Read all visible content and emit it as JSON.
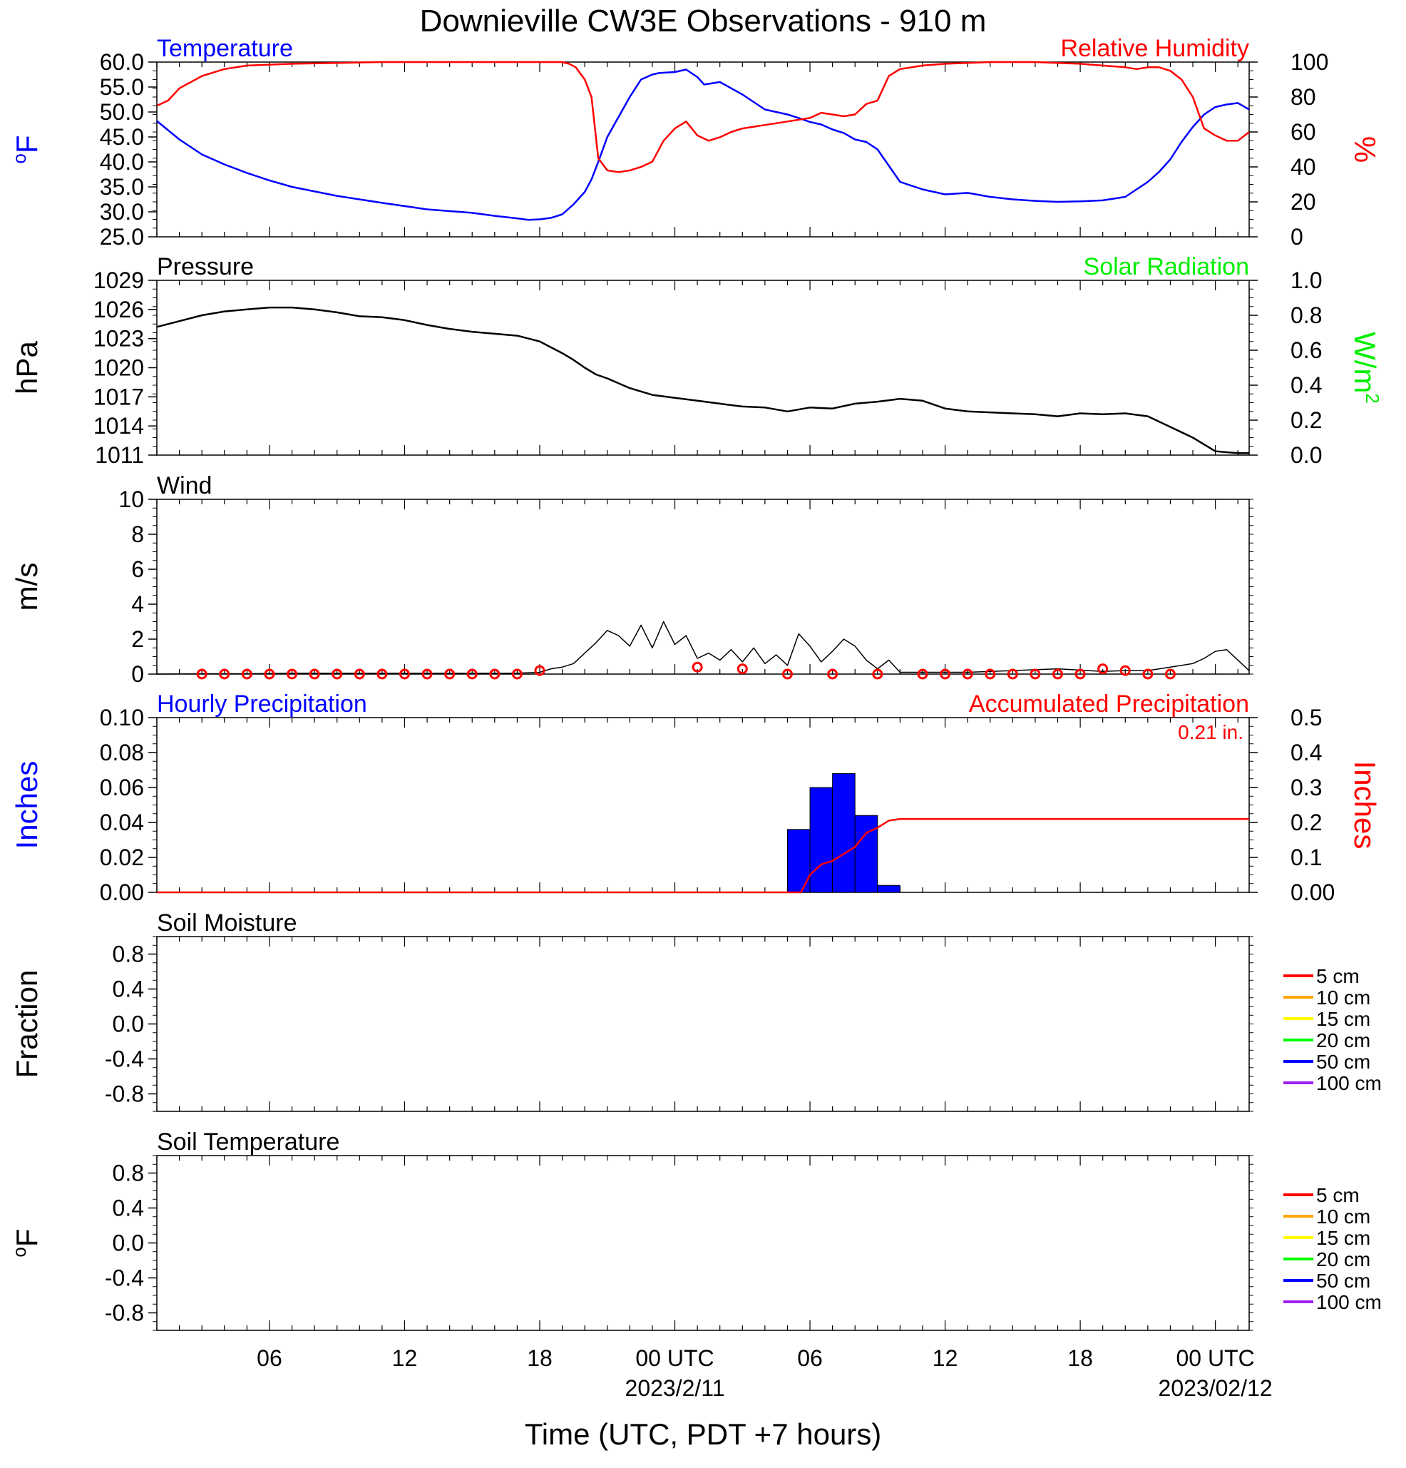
{
  "page": {
    "title": "Downieville CW3E Observations - 910 m",
    "xlabel": "Time (UTC, PDT +7 hours)",
    "x_ticks": [
      "06",
      "12",
      "18",
      "00 UTC",
      "06",
      "12",
      "18",
      "00 UTC"
    ],
    "date_labels": [
      "2023/2/11",
      "2023/02/12"
    ]
  },
  "chart_data": [
    {
      "type": "line",
      "panel": "temperature_humidity",
      "left_title": "Temperature",
      "right_title": "Relative Humidity",
      "ylabel_left": "oF",
      "ylabel_right": "%",
      "ylim_left": [
        25,
        60
      ],
      "ylim_right": [
        0,
        100
      ],
      "yticks_left": [
        "60.0",
        "55.0",
        "50.0",
        "45.0",
        "40.0",
        "35.0",
        "30.0",
        "25.0"
      ],
      "yticks_right": [
        "100",
        "80",
        "60",
        "40",
        "20",
        "0"
      ],
      "x_unit": "hours since 2023-02-10 01 UTC",
      "xlim": [
        0,
        48.5
      ],
      "series": [
        {
          "name": "Temperature",
          "axis": "left",
          "color": "#0000ff",
          "x": [
            0,
            1,
            2,
            3,
            4,
            5,
            6,
            8,
            10,
            12,
            14,
            15,
            16,
            16.5,
            17,
            17.5,
            18,
            18.5,
            19,
            19.3,
            19.6,
            20,
            21,
            21.5,
            22,
            22.3,
            22.6,
            23,
            23.5,
            24,
            24.3,
            25,
            26,
            27,
            28,
            28.5,
            29,
            29.5,
            30,
            30.5,
            31,
            31.5,
            32,
            33,
            34,
            35,
            36,
            37,
            38,
            39,
            40,
            41,
            42,
            43,
            43.5,
            44,
            44.5,
            45,
            45.5,
            46,
            46.5,
            47,
            47.5,
            48,
            48.5
          ],
          "y": [
            48.2,
            44.5,
            41.5,
            39.5,
            37.8,
            36.3,
            35.0,
            33.2,
            31.8,
            30.5,
            29.8,
            29.2,
            28.7,
            28.4,
            28.5,
            28.8,
            29.5,
            31.5,
            34.0,
            36.5,
            40.0,
            45.0,
            53.0,
            56.5,
            57.5,
            57.8,
            57.9,
            58.0,
            58.5,
            57.0,
            55.5,
            56.0,
            53.5,
            50.5,
            49.5,
            48.8,
            48.0,
            47.5,
            46.5,
            45.8,
            44.5,
            44.0,
            42.5,
            36.0,
            34.5,
            33.5,
            33.8,
            33.0,
            32.5,
            32.2,
            32.0,
            32.1,
            32.3,
            33.0,
            34.5,
            36.0,
            38.0,
            40.5,
            44.0,
            47.0,
            49.5,
            51.0,
            51.5,
            51.8,
            50.5
          ]
        },
        {
          "name": "Relative Humidity",
          "axis": "right",
          "color": "#ff0000",
          "x": [
            0,
            0.5,
            1,
            2,
            3,
            4,
            6,
            8,
            10,
            12,
            14,
            16,
            17,
            17.5,
            18,
            18.3,
            18.6,
            19,
            19.3,
            19.6,
            20,
            20.5,
            21,
            21.5,
            22,
            22.5,
            23,
            23.5,
            24,
            24.5,
            25,
            25.5,
            26,
            27,
            28,
            29,
            29.5,
            30,
            30.5,
            31,
            31.5,
            32,
            32.5,
            33,
            34,
            35,
            36,
            37,
            38,
            39,
            40,
            41,
            42,
            43,
            43.5,
            44,
            44.5,
            45,
            45.5,
            46,
            46.5,
            47,
            47.5,
            48,
            48.5
          ],
          "y": [
            75,
            78,
            85,
            92,
            96,
            98,
            99,
            99.5,
            100,
            100,
            100,
            100,
            100,
            100,
            100,
            99,
            97,
            90,
            80,
            45,
            38,
            37,
            38,
            40,
            43,
            55,
            62,
            66,
            58,
            55,
            57,
            60,
            62,
            64,
            66,
            68,
            71,
            70,
            69,
            70,
            76,
            78,
            92,
            96,
            98,
            99,
            99.5,
            100,
            100,
            100,
            99.5,
            99,
            98,
            97,
            96,
            97,
            97,
            95,
            90,
            80,
            62,
            58,
            55,
            55,
            60
          ]
        }
      ]
    },
    {
      "type": "line",
      "panel": "pressure_solar",
      "left_title": "Pressure",
      "right_title": "Solar Radiation",
      "ylabel_left": "hPa",
      "ylabel_right": "W/m2",
      "ylim_left": [
        1011,
        1029
      ],
      "ylim_right": [
        0,
        1
      ],
      "yticks_left": [
        "1029",
        "1026",
        "1023",
        "1020",
        "1017",
        "1014",
        "1011"
      ],
      "yticks_right": [
        "1.0",
        "0.8",
        "0.6",
        "0.4",
        "0.2",
        "0.0"
      ],
      "x_unit": "hours since 2023-02-10 01 UTC",
      "xlim": [
        0,
        48.5
      ],
      "series": [
        {
          "name": "Pressure",
          "axis": "left",
          "color": "#000000",
          "x": [
            0,
            1,
            2,
            3,
            4,
            5,
            6,
            7,
            8,
            9,
            10,
            11,
            12,
            13,
            14,
            15,
            16,
            17,
            18,
            18.5,
            19,
            19.5,
            20,
            21,
            22,
            23,
            24,
            25,
            26,
            27,
            28,
            29,
            30,
            31,
            32,
            33,
            34,
            35,
            36,
            37,
            38,
            39,
            40,
            41,
            42,
            43,
            44,
            45,
            46,
            47,
            48,
            48.5
          ],
          "y": [
            1024.2,
            1024.8,
            1025.4,
            1025.8,
            1026.0,
            1026.2,
            1026.2,
            1026.0,
            1025.7,
            1025.3,
            1025.2,
            1024.9,
            1024.4,
            1024.0,
            1023.7,
            1023.5,
            1023.3,
            1022.7,
            1021.5,
            1020.8,
            1020.0,
            1019.3,
            1018.9,
            1017.9,
            1017.2,
            1016.9,
            1016.6,
            1016.3,
            1016.0,
            1015.9,
            1015.5,
            1015.9,
            1015.8,
            1016.3,
            1016.5,
            1016.8,
            1016.6,
            1015.8,
            1015.5,
            1015.4,
            1015.3,
            1015.2,
            1015.0,
            1015.3,
            1015.2,
            1015.3,
            1015.0,
            1013.9,
            1012.8,
            1011.4,
            1011.2,
            1011.2
          ]
        }
      ]
    },
    {
      "type": "line",
      "panel": "wind",
      "left_title": "Wind",
      "ylabel_left": "m/s",
      "ylim_left": [
        0,
        10
      ],
      "yticks_left": [
        "10",
        "8",
        "6",
        "4",
        "2",
        "0"
      ],
      "x_unit": "hours since 2023-02-10 01 UTC",
      "xlim": [
        0,
        48.5
      ],
      "series": [
        {
          "name": "Wind speed",
          "axis": "left",
          "color": "#000000",
          "x": [
            0,
            2,
            4,
            6,
            8,
            10,
            12,
            14,
            16,
            17,
            17.5,
            18,
            18.5,
            19,
            19.5,
            20,
            20.5,
            21,
            21.5,
            22,
            22.5,
            23,
            23.5,
            24,
            24.5,
            25,
            25.5,
            26,
            26.5,
            27,
            27.5,
            28,
            28.5,
            29,
            29.5,
            30,
            30.5,
            31,
            31.5,
            32,
            32.5,
            33,
            34,
            36,
            38,
            40,
            42,
            43,
            44,
            45,
            46,
            46.5,
            47,
            47.5,
            48,
            48.5
          ],
          "y": [
            0.0,
            0.02,
            0.02,
            0.05,
            0.05,
            0.05,
            0.05,
            0.05,
            0.05,
            0.1,
            0.3,
            0.4,
            0.6,
            1.2,
            1.8,
            2.5,
            2.2,
            1.6,
            2.8,
            1.5,
            3.0,
            1.7,
            2.2,
            0.9,
            1.2,
            0.8,
            1.4,
            0.7,
            1.5,
            0.6,
            1.1,
            0.5,
            2.3,
            1.6,
            0.7,
            1.3,
            2.0,
            1.6,
            0.8,
            0.3,
            0.8,
            0.1,
            0.1,
            0.1,
            0.2,
            0.3,
            0.15,
            0.2,
            0.2,
            0.4,
            0.6,
            0.9,
            1.3,
            1.4,
            0.8,
            0.2
          ]
        },
        {
          "name": "Hourly wind obs",
          "axis": "left",
          "color": "#ff0000",
          "x": [
            2,
            3,
            4,
            5,
            6,
            7,
            8,
            9,
            10,
            11,
            12,
            13,
            14,
            15,
            16,
            17,
            24,
            26,
            28,
            30,
            32,
            34,
            35,
            36,
            37,
            38,
            39,
            40,
            41,
            42,
            43,
            44,
            45
          ],
          "y": [
            0,
            0,
            0,
            0,
            0,
            0,
            0,
            0,
            0,
            0,
            0,
            0,
            0,
            0,
            0,
            0.2,
            0.4,
            0.3,
            0,
            0,
            0,
            0,
            0,
            0,
            0,
            0,
            0,
            0,
            0,
            0.3,
            0.2,
            0,
            0
          ]
        }
      ]
    },
    {
      "type": "bar",
      "panel": "precipitation",
      "left_title": "Hourly Precipitation",
      "right_title": "Accumulated Precipitation",
      "total_label": "0.21 in.",
      "ylabel_left": "Inches",
      "ylabel_right": "Inches",
      "ylim_left": [
        0,
        0.1
      ],
      "ylim_right": [
        0,
        0.5
      ],
      "yticks_left": [
        "0.10",
        "0.08",
        "0.06",
        "0.04",
        "0.02",
        "0.00"
      ],
      "yticks_right": [
        "0.5",
        "0.4",
        "0.3",
        "0.2",
        "0.1",
        "0.00"
      ],
      "x_unit": "hours since 2023-02-10 01 UTC",
      "xlim": [
        0,
        48.5
      ],
      "bars": {
        "name": "Hourly Precipitation",
        "color": "#0000ff",
        "x_start": [
          28,
          29,
          30,
          31,
          32
        ],
        "values": [
          0.036,
          0.06,
          0.068,
          0.044,
          0.004
        ]
      },
      "series": [
        {
          "name": "Accumulated Precipitation",
          "axis": "right",
          "color": "#ff0000",
          "x": [
            0,
            28.6,
            29,
            29.5,
            30,
            30.5,
            31,
            31.5,
            32,
            32.5,
            33,
            48.5
          ],
          "y": [
            0,
            0,
            0.05,
            0.08,
            0.09,
            0.11,
            0.13,
            0.17,
            0.185,
            0.205,
            0.21,
            0.21
          ]
        }
      ]
    },
    {
      "type": "line",
      "panel": "soil_moisture",
      "left_title": "Soil Moisture",
      "ylabel_left": "Fraction",
      "ylim_left": [
        -1,
        1
      ],
      "yticks_left": [
        "0.8",
        "0.4",
        "0.0",
        "-0.4",
        "-0.8"
      ],
      "legend_position": "right",
      "series": [
        {
          "name": "5 cm",
          "color": "#ff0000",
          "values": []
        },
        {
          "name": "10 cm",
          "color": "#ffa500",
          "values": []
        },
        {
          "name": "15 cm",
          "color": "#ffff00",
          "values": []
        },
        {
          "name": "20 cm",
          "color": "#00ff00",
          "values": []
        },
        {
          "name": "50 cm",
          "color": "#0000ff",
          "values": []
        },
        {
          "name": "100 cm",
          "color": "#a020f0",
          "values": []
        }
      ]
    },
    {
      "type": "line",
      "panel": "soil_temperature",
      "left_title": "Soil Temperature",
      "ylabel_left": "oF",
      "ylim_left": [
        -1,
        1
      ],
      "yticks_left": [
        "0.8",
        "0.4",
        "0.0",
        "-0.4",
        "-0.8"
      ],
      "legend_position": "right",
      "series": [
        {
          "name": "5 cm",
          "color": "#ff0000",
          "values": []
        },
        {
          "name": "10 cm",
          "color": "#ffa500",
          "values": []
        },
        {
          "name": "15 cm",
          "color": "#ffff00",
          "values": []
        },
        {
          "name": "20 cm",
          "color": "#00ff00",
          "values": []
        },
        {
          "name": "50 cm",
          "color": "#0000ff",
          "values": []
        },
        {
          "name": "100 cm",
          "color": "#a020f0",
          "values": []
        }
      ]
    }
  ]
}
